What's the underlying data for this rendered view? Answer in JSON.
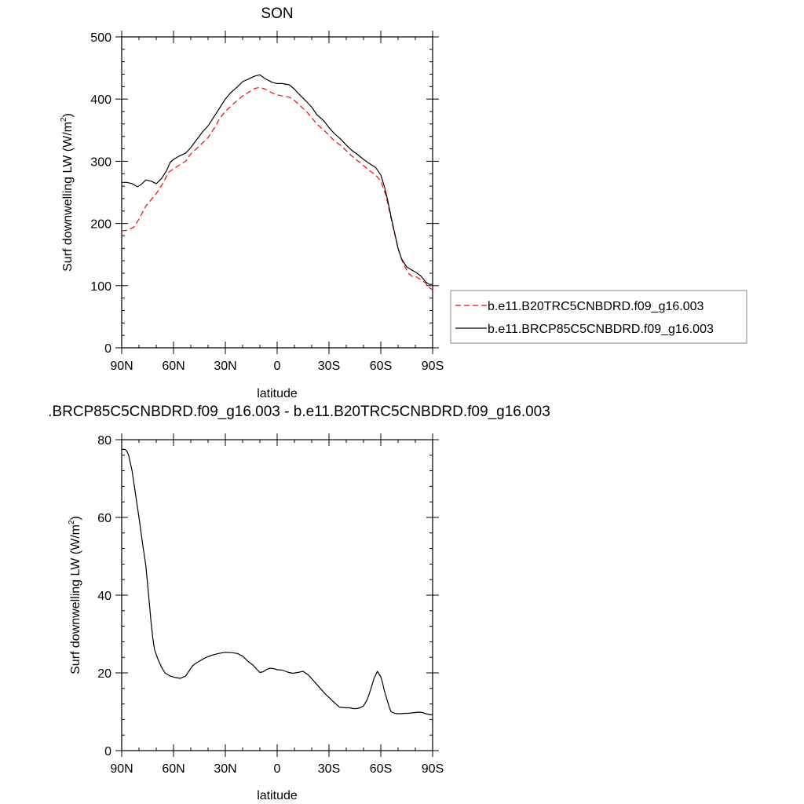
{
  "chart_data": [
    {
      "type": "line",
      "title": "SON",
      "xlabel": "latitude",
      "ylabel_main": "Surf downwelling LW (W/m",
      "ylabel_sup": "2",
      "ylabel_tail": ")",
      "xlim": [
        90,
        -90
      ],
      "ylim": [
        0,
        500
      ],
      "x_ticks": [
        {
          "value": 90,
          "label": "90N"
        },
        {
          "value": 60,
          "label": "60N"
        },
        {
          "value": 30,
          "label": "30N"
        },
        {
          "value": 0,
          "label": "0"
        },
        {
          "value": -30,
          "label": "30S"
        },
        {
          "value": -60,
          "label": "60S"
        },
        {
          "value": -90,
          "label": "90S"
        }
      ],
      "y_ticks": [
        0,
        100,
        200,
        300,
        400,
        500
      ],
      "legend_position": "right",
      "series": [
        {
          "name": "b.e11.B20TRC5CNBDRD.f09_g16.003",
          "color": "#ff0000",
          "dash": true,
          "x": [
            90,
            87,
            83,
            80,
            76,
            73,
            70,
            66,
            63,
            60,
            57,
            53,
            50,
            46,
            43,
            40,
            36,
            33,
            30,
            27,
            23,
            20,
            16,
            13,
            10,
            7,
            3,
            0,
            -3,
            -7,
            -10,
            -13,
            -17,
            -20,
            -23,
            -27,
            -30,
            -33,
            -37,
            -40,
            -43,
            -47,
            -50,
            -53,
            -57,
            -60,
            -63,
            -65,
            -67,
            -70,
            -73,
            -76,
            -78,
            -80,
            -83,
            -86,
            -88,
            -90
          ],
          "y": [
            188,
            189,
            194,
            207,
            228,
            238,
            248,
            265,
            282,
            288,
            293,
            300,
            312,
            322,
            330,
            338,
            355,
            370,
            380,
            388,
            398,
            405,
            412,
            417,
            419,
            416,
            410,
            407,
            405,
            403,
            398,
            390,
            380,
            370,
            360,
            350,
            342,
            333,
            325,
            317,
            309,
            300,
            293,
            286,
            278,
            268,
            245,
            220,
            195,
            160,
            135,
            120,
            115,
            115,
            110,
            104,
            97,
            93
          ]
        },
        {
          "name": "b.e11.BRCP85C5CNBDRD.f09_g16.003",
          "color": "#000000",
          "dash": false,
          "x": [
            90,
            87,
            84,
            81,
            79,
            76,
            73,
            70,
            67,
            64,
            62,
            60,
            57,
            53,
            50,
            46,
            43,
            40,
            36,
            33,
            30,
            27,
            23,
            20,
            16,
            13,
            10,
            7,
            3,
            0,
            -3,
            -7,
            -10,
            -13,
            -17,
            -20,
            -23,
            -27,
            -30,
            -33,
            -37,
            -40,
            -43,
            -47,
            -50,
            -53,
            -57,
            -60,
            -62,
            -64,
            -66,
            -68,
            -70,
            -72,
            -75,
            -78,
            -80,
            -83,
            -86,
            -88,
            -90
          ],
          "y": [
            266,
            266,
            264,
            259,
            262,
            270,
            268,
            264,
            272,
            285,
            298,
            303,
            308,
            313,
            322,
            337,
            348,
            357,
            374,
            387,
            400,
            410,
            420,
            428,
            433,
            437,
            439,
            433,
            427,
            425,
            425,
            423,
            416,
            407,
            396,
            387,
            375,
            365,
            354,
            345,
            335,
            326,
            318,
            310,
            303,
            297,
            290,
            278,
            260,
            237,
            210,
            185,
            160,
            143,
            130,
            125,
            122,
            116,
            106,
            102,
            102
          ]
        }
      ]
    },
    {
      "type": "line",
      "title": ".BRCP85C5CNBDRD.f09_g16.003 - b.e11.B20TRC5CNBDRD.f09_g16.003",
      "xlabel": "latitude",
      "ylabel_main": "Surf downwelling LW (W/m",
      "ylabel_sup": "2",
      "ylabel_tail": ")",
      "xlim": [
        90,
        -90
      ],
      "ylim": [
        0,
        80
      ],
      "x_ticks": [
        {
          "value": 90,
          "label": "90N"
        },
        {
          "value": 60,
          "label": "60N"
        },
        {
          "value": 30,
          "label": "30N"
        },
        {
          "value": 0,
          "label": "0"
        },
        {
          "value": -30,
          "label": "30S"
        },
        {
          "value": -60,
          "label": "60S"
        },
        {
          "value": -90,
          "label": "90S"
        }
      ],
      "y_ticks": [
        0,
        20,
        40,
        60,
        80
      ],
      "series": [
        {
          "color": "#000000",
          "dash": false,
          "x": [
            90,
            88,
            87,
            86,
            84,
            82,
            80,
            78,
            76,
            74,
            73,
            72,
            71,
            69,
            67,
            65,
            62,
            59,
            56,
            53,
            51,
            49,
            47,
            45,
            42,
            38,
            34,
            30,
            26,
            23,
            20,
            17,
            14,
            12,
            10,
            8,
            6,
            4,
            2,
            0,
            -3,
            -6,
            -9,
            -12,
            -15,
            -18,
            -21,
            -24,
            -28,
            -32,
            -36,
            -40,
            -42,
            -44,
            -46,
            -48,
            -50,
            -52,
            -54,
            -56,
            -58,
            -60,
            -61,
            -62,
            -63,
            -64,
            -65,
            -66,
            -68,
            -70,
            -72,
            -74,
            -76,
            -78,
            -80,
            -82,
            -84,
            -86,
            -88,
            -90
          ],
          "y": [
            77.5,
            77.5,
            77.0,
            76.0,
            72.0,
            66.0,
            60.0,
            53.5,
            47.5,
            38.0,
            33.0,
            29.0,
            26.0,
            23.5,
            21.5,
            20.0,
            19.2,
            18.8,
            18.6,
            19.2,
            20.5,
            21.8,
            22.5,
            23.0,
            23.8,
            24.5,
            25.0,
            25.3,
            25.2,
            25.0,
            24.3,
            23.0,
            22.0,
            21.0,
            20.1,
            20.3,
            20.9,
            21.2,
            21.1,
            20.8,
            20.7,
            20.2,
            19.9,
            20.1,
            20.4,
            19.5,
            18.0,
            16.5,
            14.5,
            12.8,
            11.2,
            11.0,
            11.0,
            10.8,
            10.8,
            11.0,
            11.5,
            13.0,
            15.5,
            18.5,
            20.4,
            19.0,
            17.5,
            15.5,
            14.0,
            12.5,
            11.0,
            10.0,
            9.6,
            9.5,
            9.5,
            9.6,
            9.6,
            9.7,
            9.8,
            9.9,
            9.8,
            9.5,
            9.3,
            9.2
          ]
        }
      ]
    }
  ]
}
